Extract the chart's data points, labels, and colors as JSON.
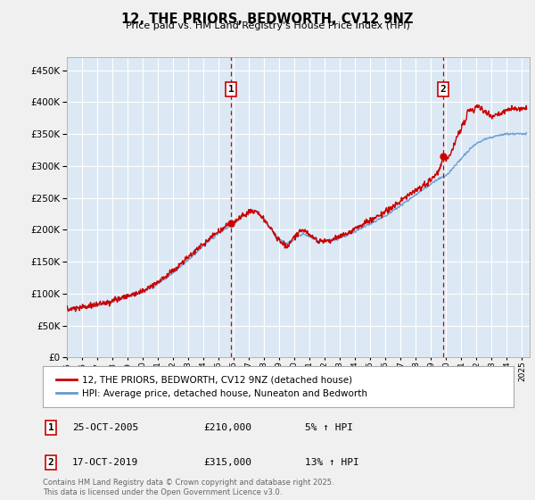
{
  "title": "12, THE PRIORS, BEDWORTH, CV12 9NZ",
  "subtitle": "Price paid vs. HM Land Registry's House Price Index (HPI)",
  "ytick_values": [
    0,
    50000,
    100000,
    150000,
    200000,
    250000,
    300000,
    350000,
    400000,
    450000
  ],
  "ylim": [
    0,
    470000
  ],
  "xlim_start": 1995.0,
  "xlim_end": 2025.5,
  "background_color": "#f0f0f0",
  "plot_bg_color": "#dce9f5",
  "marker1_x": 2005.82,
  "marker1_y": 210000,
  "marker2_x": 2019.8,
  "marker2_y": 315000,
  "legend_line1": "12, THE PRIORS, BEDWORTH, CV12 9NZ (detached house)",
  "legend_line2": "HPI: Average price, detached house, Nuneaton and Bedworth",
  "annot1_date": "25-OCT-2005",
  "annot1_price": "£210,000",
  "annot1_hpi": "5% ↑ HPI",
  "annot2_date": "17-OCT-2019",
  "annot2_price": "£315,000",
  "annot2_hpi": "13% ↑ HPI",
  "footnote": "Contains HM Land Registry data © Crown copyright and database right 2025.\nThis data is licensed under the Open Government Licence v3.0.",
  "line_color_price": "#cc0000",
  "line_color_hpi": "#6699cc",
  "grid_color": "#ffffff",
  "tick_years": [
    1995,
    1996,
    1997,
    1998,
    1999,
    2000,
    2001,
    2002,
    2003,
    2004,
    2005,
    2006,
    2007,
    2008,
    2009,
    2010,
    2011,
    2012,
    2013,
    2014,
    2015,
    2016,
    2017,
    2018,
    2019,
    2020,
    2021,
    2022,
    2023,
    2024,
    2025
  ]
}
